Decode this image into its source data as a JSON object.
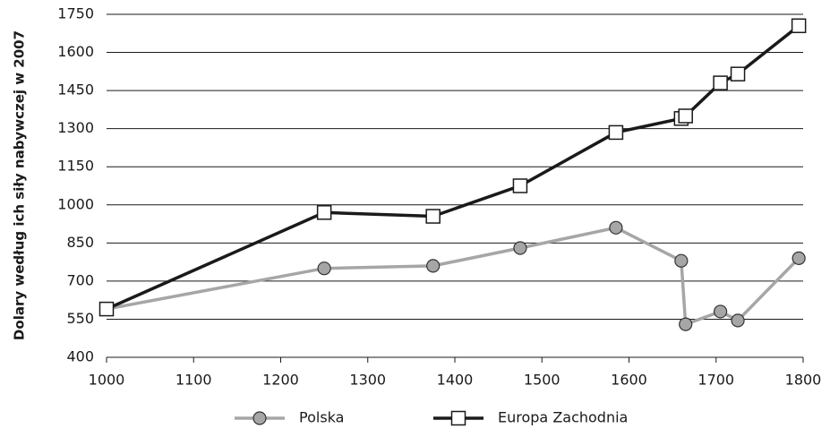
{
  "chart_data": {
    "type": "line",
    "ylabel": "Dolary według ich siły nabywczej w 2007",
    "xlim": [
      1000,
      1800
    ],
    "xticks": [
      1000,
      1100,
      1200,
      1300,
      1400,
      1500,
      1600,
      1700,
      1800
    ],
    "ylim": [
      400,
      1750
    ],
    "yticks": [
      400,
      550,
      700,
      850,
      1000,
      1150,
      1300,
      1450,
      1600,
      1750
    ],
    "grid": true,
    "legend": "bottom",
    "x": [
      1000,
      1250,
      1375,
      1475,
      1585,
      1660,
      1665,
      1705,
      1725,
      1795
    ],
    "series": [
      {
        "name": "Polska",
        "color": "#a6a6a6",
        "marker": "circle",
        "values": [
          590,
          750,
          760,
          830,
          910,
          780,
          530,
          580,
          545,
          790
        ]
      },
      {
        "name": "Europa Zachodnia",
        "color": "#1a1a1a",
        "marker": "square",
        "values": [
          590,
          970,
          955,
          1075,
          1285,
          1340,
          1350,
          1480,
          1515,
          1705
        ]
      }
    ]
  }
}
